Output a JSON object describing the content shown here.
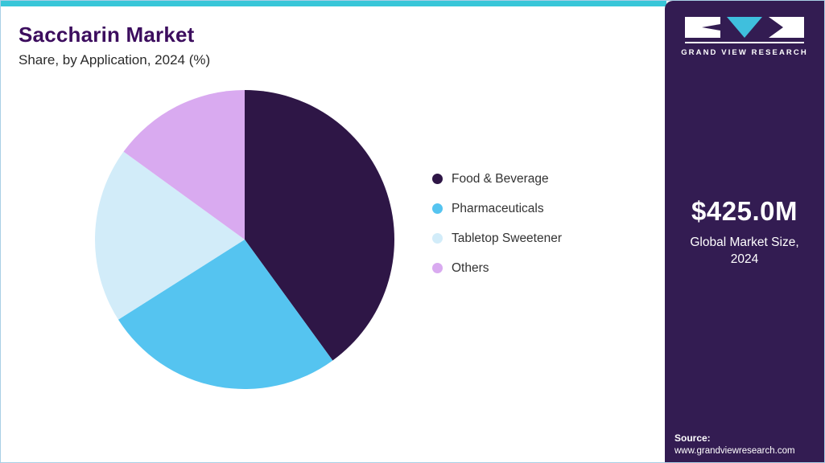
{
  "page": {
    "title": "Saccharin Market",
    "subtitle": "Share, by Application, 2024 (%)"
  },
  "sidebar": {
    "brand": "GRAND VIEW RESEARCH",
    "market_size": "$425.0M",
    "market_size_label": "Global Market Size, 2024",
    "source_label": "Source:",
    "source_url": "www.grandviewresearch.com"
  },
  "chart_data": {
    "type": "pie",
    "title": "Saccharin Market Share, by Application, 2024 (%)",
    "categories": [
      "Food & Beverage",
      "Pharmaceuticals",
      "Tabletop Sweetener",
      "Others"
    ],
    "values": [
      40,
      26,
      19,
      15
    ],
    "colors": [
      "#2e1646",
      "#55c4f0",
      "#d2ecf9",
      "#d9aaf0"
    ],
    "start_angle_deg": 0,
    "direction": "clockwise",
    "legend_position": "right"
  },
  "colors": {
    "accent_teal": "#38c6d8",
    "sidebar_bg": "#331c52",
    "title": "#3c0d5e",
    "logo_accent": "#3fbfdd"
  }
}
